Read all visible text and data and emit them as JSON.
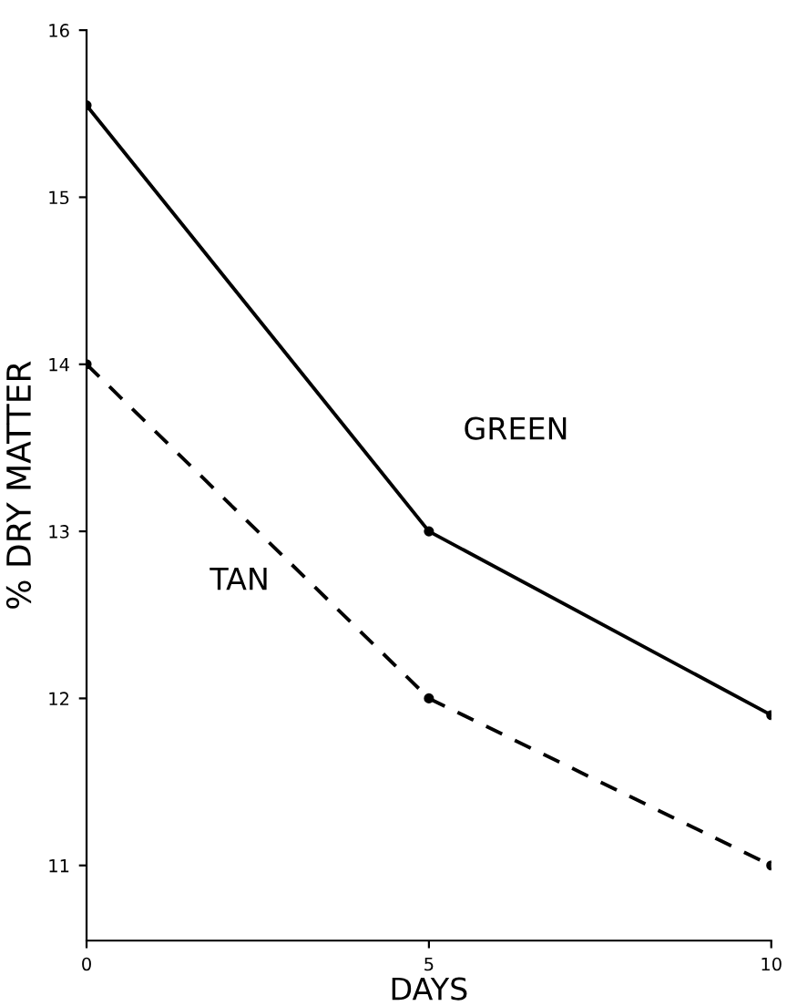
{
  "chart_data": {
    "type": "line",
    "xlabel": "DAYS",
    "ylabel": "% DRY MATTER",
    "x": [
      0,
      5,
      10
    ],
    "series": [
      {
        "name": "GREEN",
        "color": "#000000",
        "values": [
          15.55,
          13.0,
          11.9
        ],
        "line_style": "solid"
      },
      {
        "name": "TAN",
        "color": "#000000",
        "values": [
          14.0,
          12.0,
          11.0
        ],
        "line_style": "dashed"
      }
    ],
    "marker": "circle",
    "xlim": [
      0,
      10
    ],
    "ylim": [
      10.55,
      16
    ],
    "xticks": [
      0,
      5,
      10
    ],
    "yticks": [
      11,
      12,
      13,
      14,
      15,
      16
    ],
    "grid": false,
    "legend": false
  }
}
